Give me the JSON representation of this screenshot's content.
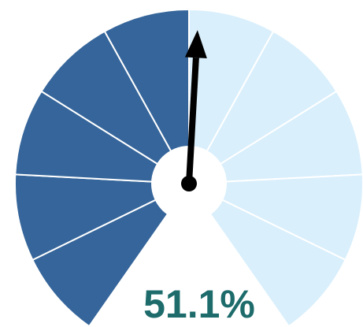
{
  "chart_data": {
    "type": "gauge",
    "values": [
      51.1
    ],
    "value_labels": [
      "51.1%"
    ],
    "ylim": [
      0,
      100
    ],
    "band_colors": [
      "#35659a",
      "#35659a",
      "#35659a",
      "#35659a",
      "#35659a",
      "#d9effc",
      "#d9effc",
      "#d9effc",
      "#d9effc",
      "#d9effc"
    ],
    "needle_color": "#000000",
    "value_color": "#1d6b6b"
  }
}
